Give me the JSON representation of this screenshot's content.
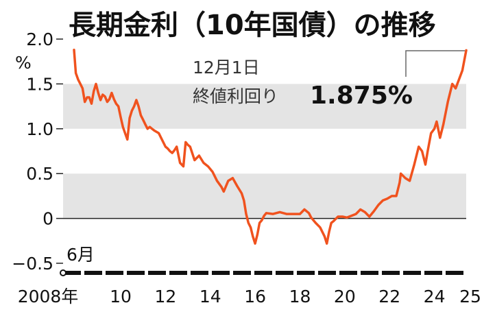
{
  "colors": {
    "line": "#f0521e",
    "band": "#e4e4e4",
    "axis": "#222222",
    "leader": "#666666"
  },
  "chart_data": {
    "type": "line",
    "title": "長期金利（10年国債）の推移",
    "unit_label": "%",
    "start_label": "6月",
    "ylim": [
      -0.5,
      2.0
    ],
    "yticks": [
      {
        "value": 2.0,
        "label": "2.0"
      },
      {
        "value": 1.5,
        "label": "1.5"
      },
      {
        "value": 1.0,
        "label": "1.0"
      },
      {
        "value": 0.5,
        "label": "0.5"
      },
      {
        "value": 0,
        "label": "0"
      },
      {
        "value": -0.5,
        "label": "−0.5"
      }
    ],
    "xlim": [
      2008.42,
      2025.92
    ],
    "xticks": [
      {
        "value": 2008,
        "label": "2008年"
      },
      {
        "value": 2010,
        "label": "10"
      },
      {
        "value": 2012,
        "label": "12"
      },
      {
        "value": 2014,
        "label": "14"
      },
      {
        "value": 2016,
        "label": "16"
      },
      {
        "value": 2018,
        "label": "18"
      },
      {
        "value": 2020,
        "label": "20"
      },
      {
        "value": 2022,
        "label": "22"
      },
      {
        "value": 2024,
        "label": "24"
      },
      {
        "value": 2025,
        "label": "25"
      }
    ],
    "bands": [
      [
        1.0,
        1.5
      ],
      [
        0,
        0.5
      ]
    ],
    "annotation": {
      "date": "12月1日",
      "label": "終値利回り",
      "value": "1.875%"
    },
    "series": [
      {
        "x": [
          2008.42,
          2008.5,
          2008.6,
          2008.7,
          2008.8,
          2008.9,
          2009.0,
          2009.1,
          2009.2,
          2009.3,
          2009.4,
          2009.5,
          2009.6,
          2009.7,
          2009.8,
          2009.9,
          2010.0,
          2010.1,
          2010.2,
          2010.3,
          2010.4,
          2010.5,
          2010.6,
          2010.7,
          2010.8,
          2010.9,
          2011.0,
          2011.1,
          2011.2,
          2011.3,
          2011.4,
          2011.5,
          2011.6,
          2011.7,
          2011.8,
          2011.9,
          2012.0,
          2012.2,
          2012.4,
          2012.5,
          2012.6,
          2012.7,
          2012.8,
          2012.9,
          2013.0,
          2013.15,
          2013.3,
          2013.4,
          2013.5,
          2013.6,
          2013.8,
          2014.0,
          2014.2,
          2014.4,
          2014.6,
          2014.8,
          2015.0,
          2015.1,
          2015.3,
          2015.5,
          2015.7,
          2015.9,
          2016.0,
          2016.1,
          2016.2,
          2016.3,
          2016.4,
          2016.5,
          2016.6,
          2016.7,
          2016.8,
          2016.9,
          2017.0,
          2017.3,
          2017.6,
          2017.9,
          2018.2,
          2018.5,
          2018.7,
          2018.9,
          2019.0,
          2019.2,
          2019.4,
          2019.6,
          2019.7,
          2019.8,
          2019.9,
          2020.0,
          2020.2,
          2020.4,
          2020.6,
          2020.8,
          2021.0,
          2021.2,
          2021.4,
          2021.6,
          2021.8,
          2022.0,
          2022.2,
          2022.4,
          2022.6,
          2022.8,
          2022.95,
          2023.0,
          2023.2,
          2023.4,
          2023.6,
          2023.8,
          2023.95,
          2024.1,
          2024.2,
          2024.35,
          2024.5,
          2024.6,
          2024.75,
          2024.9,
          2025.1,
          2025.3,
          2025.45,
          2025.6,
          2025.75,
          2025.92
        ],
        "y": [
          1.88,
          1.62,
          1.55,
          1.5,
          1.45,
          1.3,
          1.35,
          1.35,
          1.28,
          1.42,
          1.5,
          1.4,
          1.32,
          1.38,
          1.36,
          1.3,
          1.33,
          1.4,
          1.33,
          1.28,
          1.25,
          1.13,
          1.02,
          0.95,
          0.88,
          1.12,
          1.2,
          1.25,
          1.32,
          1.25,
          1.15,
          1.1,
          1.05,
          1.0,
          1.02,
          1.0,
          0.98,
          0.95,
          0.85,
          0.8,
          0.78,
          0.75,
          0.73,
          0.76,
          0.8,
          0.62,
          0.58,
          0.85,
          0.82,
          0.8,
          0.65,
          0.7,
          0.62,
          0.58,
          0.52,
          0.42,
          0.35,
          0.3,
          0.42,
          0.45,
          0.36,
          0.28,
          0.2,
          0.05,
          -0.05,
          -0.1,
          -0.2,
          -0.28,
          -0.18,
          -0.05,
          -0.02,
          0.03,
          0.06,
          0.05,
          0.07,
          0.05,
          0.05,
          0.05,
          0.1,
          0.06,
          0.01,
          -0.05,
          -0.1,
          -0.2,
          -0.28,
          -0.15,
          -0.05,
          -0.03,
          0.02,
          0.02,
          0.01,
          0.03,
          0.05,
          0.1,
          0.07,
          0.02,
          0.08,
          0.15,
          0.2,
          0.22,
          0.25,
          0.25,
          0.4,
          0.5,
          0.45,
          0.42,
          0.6,
          0.8,
          0.75,
          0.6,
          0.75,
          0.95,
          1.0,
          1.08,
          0.9,
          1.05,
          1.3,
          1.5,
          1.45,
          1.55,
          1.65,
          1.875
        ]
      }
    ]
  }
}
